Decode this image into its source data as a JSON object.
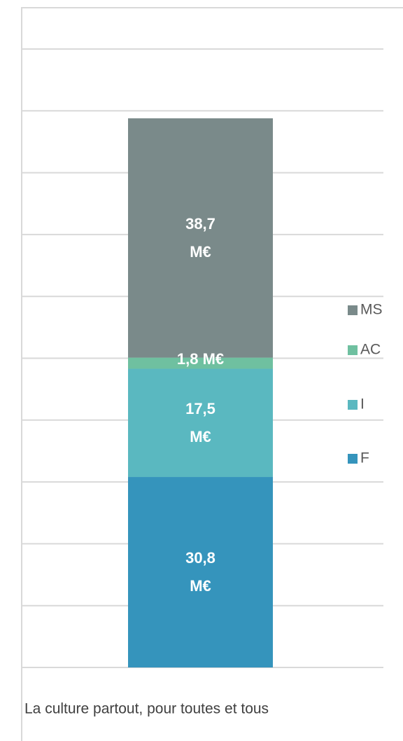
{
  "chart_data": {
    "type": "stacked_bar",
    "categories": [
      "La culture partout, pour toutes et tous"
    ],
    "series": [
      {
        "name": "F",
        "color": "#3594bc",
        "values": [
          30.8
        ],
        "value_labels": [
          "30,8 M€"
        ]
      },
      {
        "name": "I",
        "color": "#5ab8c0",
        "values": [
          17.5
        ],
        "value_labels": [
          "17,5 M€"
        ]
      },
      {
        "name": "AC",
        "color": "#6fc0a0",
        "values": [
          1.8
        ],
        "value_labels": [
          "1,8 M€"
        ]
      },
      {
        "name": "MS",
        "color": "#7a8a8a",
        "values": [
          38.7
        ],
        "value_labels": [
          "38,7 M€"
        ]
      }
    ],
    "ylim": [
      0,
      100
    ],
    "yticks": [
      0,
      10,
      20,
      30,
      40,
      50,
      60,
      70,
      80,
      90,
      100
    ],
    "grid": true,
    "legend": "right"
  }
}
